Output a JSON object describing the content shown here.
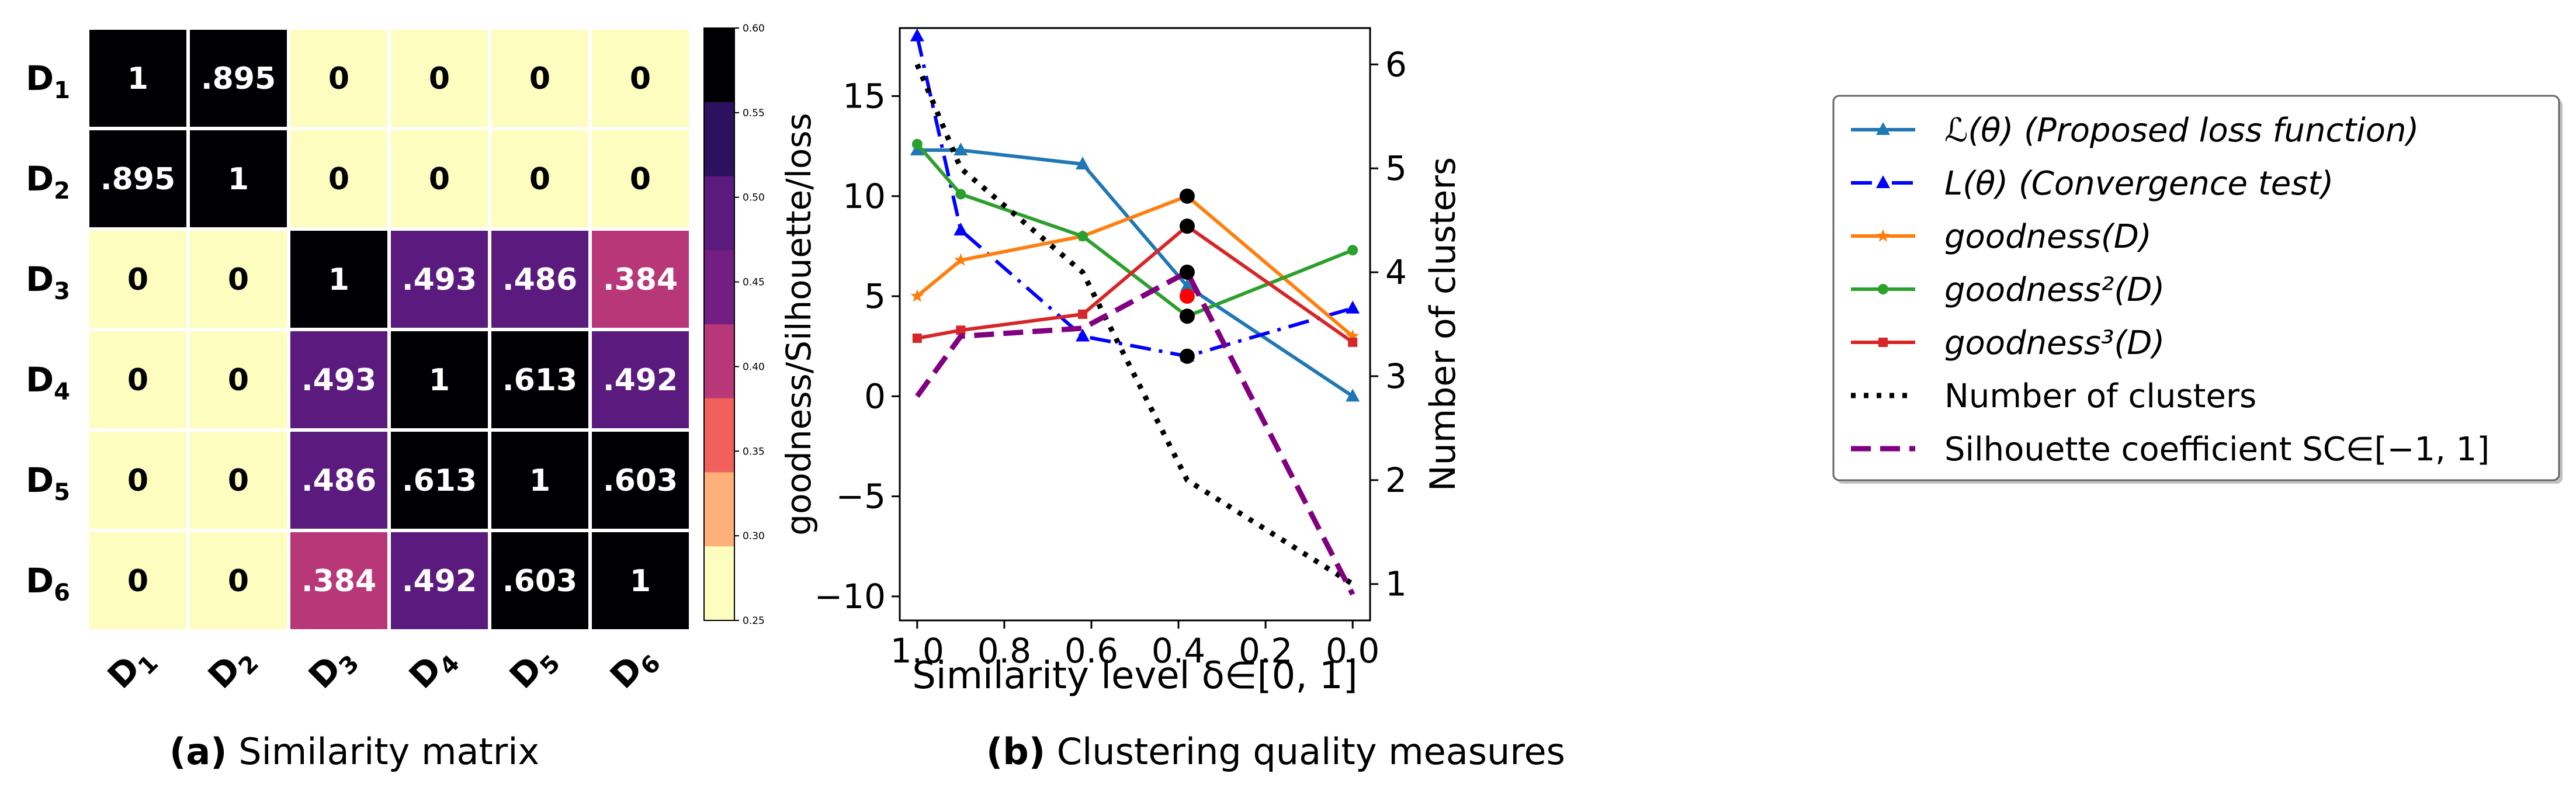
{
  "chart_data": [
    {
      "type": "heatmap",
      "caption_label": "(a)",
      "caption_text": "Similarity matrix",
      "row_labels": [
        "1",
        "2",
        "3",
        "4",
        "5",
        "6"
      ],
      "col_labels": [
        "1",
        "2",
        "3",
        "4",
        "5",
        "6"
      ],
      "label_prefix": "D",
      "values": [
        [
          1,
          0.895,
          0,
          0,
          0,
          0
        ],
        [
          0.895,
          1,
          0,
          0,
          0,
          0
        ],
        [
          0,
          0,
          1,
          0.493,
          0.486,
          0.384
        ],
        [
          0,
          0,
          0.493,
          1,
          0.613,
          0.492
        ],
        [
          0,
          0,
          0.486,
          0.613,
          1,
          0.603
        ],
        [
          0,
          0,
          0.384,
          0.492,
          0.603,
          1
        ]
      ],
      "cell_text": [
        [
          "1",
          ".895",
          "0",
          "0",
          "0",
          "0"
        ],
        [
          ".895",
          "1",
          "0",
          "0",
          "0",
          "0"
        ],
        [
          "0",
          "0",
          "1",
          ".493",
          ".486",
          ".384"
        ],
        [
          "0",
          "0",
          ".493",
          "1",
          ".613",
          ".492"
        ],
        [
          "0",
          "0",
          ".486",
          ".613",
          "1",
          ".603"
        ],
        [
          "0",
          "0",
          ".384",
          ".492",
          ".603",
          "1"
        ]
      ],
      "colorbar": {
        "label": "goodness/Silhouette/loss",
        "ticks": [
          "0.25",
          "0.30",
          "0.35",
          "0.40",
          "0.45",
          "0.50",
          "0.55",
          "0.60"
        ],
        "range": [
          0.25,
          0.6
        ],
        "colors": [
          "#fcfdbf",
          "#feb078",
          "#f1605d",
          "#b73779",
          "#721f81",
          "#5b1a7d",
          "#2c115f",
          "#000004"
        ]
      }
    },
    {
      "type": "line",
      "caption_label": "(b)",
      "caption_text": "Clustering quality measures",
      "xlabel": "Similarity level δ∈[0, 1]",
      "ylabel_right": "Number of clusters",
      "xlim": [
        1.04,
        -0.04
      ],
      "ylim": [
        -11.2,
        18.4
      ],
      "y2lim": [
        0.65,
        6.35
      ],
      "xticks": [
        "1.0",
        "0.8",
        "0.6",
        "0.4",
        "0.2",
        "0.0"
      ],
      "yticks": [
        "−10",
        "−5",
        "0",
        "5",
        "10",
        "15"
      ],
      "y2ticks": [
        "1",
        "2",
        "3",
        "4",
        "5",
        "6"
      ],
      "series": [
        {
          "name": "ℒ(θ) (Proposed loss function)",
          "color": "#1f77b4",
          "dash": "solid",
          "marker": "triangle",
          "x": [
            1.0,
            0.9,
            0.62,
            0.38,
            0.0
          ],
          "y": [
            12.3,
            12.3,
            11.6,
            5.5,
            0.0
          ]
        },
        {
          "name": "L(θ) (Convergence test)",
          "color": "#0000ff",
          "dash": "dashdot",
          "marker": "triangle",
          "x": [
            1.0,
            0.9,
            0.62,
            0.38,
            0.0
          ],
          "y": [
            18.0,
            8.3,
            3.0,
            2.0,
            4.4
          ]
        },
        {
          "name": "goodness(D)",
          "color": "#ff7f0e",
          "dash": "solid",
          "marker": "star",
          "x": [
            1.0,
            0.9,
            0.62,
            0.38,
            0.0
          ],
          "y": [
            5.0,
            6.8,
            8.0,
            10.0,
            3.0
          ]
        },
        {
          "name": "goodness²(D)",
          "color": "#2ca02c",
          "dash": "solid",
          "marker": "circle",
          "x": [
            1.0,
            0.9,
            0.62,
            0.38,
            0.0
          ],
          "y": [
            12.6,
            10.1,
            8.0,
            4.0,
            7.3
          ]
        },
        {
          "name": "goodness³(D)",
          "color": "#d62728",
          "dash": "solid",
          "marker": "square",
          "x": [
            1.0,
            0.9,
            0.62,
            0.38,
            0.0
          ],
          "y": [
            2.9,
            3.3,
            4.1,
            8.5,
            2.7
          ]
        },
        {
          "name": "Number of clusters",
          "color": "#000000",
          "dash": "dotted",
          "marker": "none",
          "axis": "right",
          "x": [
            1.0,
            0.9,
            0.62,
            0.38,
            0.0
          ],
          "y": [
            6,
            5,
            4,
            2,
            1
          ]
        },
        {
          "name": "Silhouette coefficient SC∈[−1, 1]",
          "color": "#800080",
          "dash": "dashed",
          "marker": "none",
          "x": [
            1.0,
            0.9,
            0.62,
            0.38,
            0.0
          ],
          "y": [
            0.0,
            3.0,
            3.4,
            6.2,
            -9.9
          ]
        }
      ],
      "highlights": [
        {
          "x": 0.38,
          "y": 10.0,
          "color": "#000000"
        },
        {
          "x": 0.38,
          "y": 8.5,
          "color": "#000000"
        },
        {
          "x": 0.38,
          "y": 6.2,
          "color": "#000000"
        },
        {
          "x": 0.38,
          "y": 5.0,
          "color": "#ff0000"
        },
        {
          "x": 0.38,
          "y": 4.0,
          "color": "#000000"
        },
        {
          "x": 0.38,
          "y": 2.0,
          "color": "#000000"
        }
      ],
      "legend_position": "right, outside"
    }
  ]
}
